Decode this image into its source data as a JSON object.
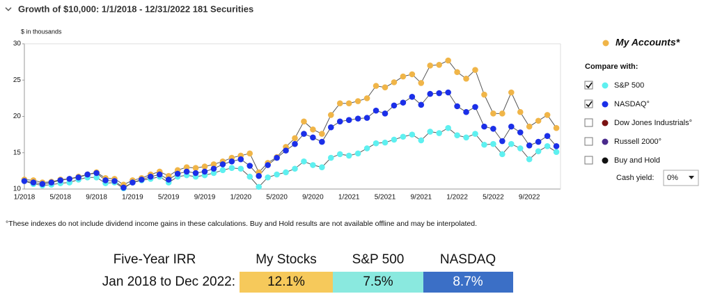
{
  "header": {
    "title": "Growth of $10,000:  1/1/2018 - 12/31/2022  181 Securities"
  },
  "chart_data": {
    "type": "line",
    "ylabel": "$ in thousands",
    "categories": [
      "1/2018",
      null,
      null,
      null,
      "5/2018",
      null,
      null,
      null,
      "9/2018",
      null,
      null,
      null,
      "1/2019",
      null,
      null,
      null,
      "5/2019",
      null,
      null,
      null,
      "9/2019",
      null,
      null,
      null,
      "1/2020",
      null,
      null,
      null,
      "5/2020",
      null,
      null,
      null,
      "9/2020",
      null,
      null,
      null,
      "1/2021",
      null,
      null,
      null,
      "5/2021",
      null,
      null,
      null,
      "9/2021",
      null,
      null,
      null,
      "1/2022",
      null,
      null,
      null,
      "5/2022",
      null,
      null,
      null,
      "9/2022",
      null,
      null,
      null
    ],
    "series": [
      {
        "name": "My Accounts*",
        "color": "#f0b548",
        "values": [
          11.3,
          11.2,
          10.9,
          11.0,
          11.3,
          11.4,
          11.7,
          12.0,
          12.3,
          11.5,
          11.4,
          10.6,
          11.2,
          11.5,
          12.0,
          12.4,
          11.8,
          12.6,
          13.0,
          12.9,
          13.1,
          13.4,
          13.8,
          14.3,
          14.6,
          14.9,
          12.3,
          13.6,
          14.4,
          15.8,
          17.0,
          19.3,
          18.2,
          17.6,
          20.2,
          21.8,
          21.8,
          22.1,
          22.5,
          24.2,
          24.0,
          24.7,
          25.5,
          25.8,
          24.6,
          27.0,
          27.1,
          27.7,
          26.1,
          25.2,
          26.4,
          23.0,
          20.4,
          20.4,
          23.3,
          20.6,
          18.6,
          19.4,
          20.2,
          18.4
        ]
      },
      {
        "name": "S&P 500",
        "color": "#5ef0f0",
        "values": [
          11.1,
          10.7,
          10.5,
          10.6,
          10.8,
          10.9,
          11.3,
          11.6,
          11.6,
          10.8,
          10.9,
          10.1,
          10.9,
          11.2,
          11.4,
          11.7,
          10.9,
          11.7,
          11.9,
          11.7,
          11.9,
          12.2,
          12.6,
          12.9,
          12.8,
          11.7,
          10.3,
          11.6,
          12.0,
          12.3,
          12.8,
          13.8,
          13.3,
          13.0,
          14.3,
          14.8,
          14.6,
          14.9,
          15.6,
          16.3,
          16.4,
          16.8,
          17.2,
          17.5,
          16.7,
          17.9,
          17.7,
          18.4,
          17.4,
          17.1,
          17.6,
          16.1,
          16.2,
          14.8,
          16.2,
          15.6,
          14.1,
          15.2,
          15.9,
          15.1
        ]
      },
      {
        "name": "NASDAQ°",
        "color": "#1b2fe8",
        "values": [
          11.1,
          10.9,
          10.7,
          10.9,
          11.2,
          11.4,
          11.6,
          12.0,
          12.2,
          11.2,
          11.1,
          10.2,
          10.9,
          11.3,
          11.7,
          12.0,
          11.3,
          12.1,
          12.4,
          12.2,
          12.4,
          12.8,
          13.4,
          13.8,
          14.1,
          13.2,
          11.8,
          13.3,
          14.3,
          15.3,
          16.2,
          17.6,
          17.1,
          16.5,
          18.5,
          19.3,
          19.5,
          19.7,
          19.8,
          20.8,
          20.4,
          21.5,
          21.9,
          22.7,
          21.6,
          23.1,
          23.2,
          23.3,
          21.4,
          20.6,
          21.3,
          18.6,
          18.3,
          16.6,
          18.6,
          17.8,
          16.0,
          16.5,
          17.3,
          15.9
        ]
      }
    ],
    "ylim": [
      10,
      30
    ],
    "yticks": [
      10,
      15,
      20,
      25,
      30
    ],
    "grid": false
  },
  "legend": {
    "compare_label": "Compare with:",
    "options": [
      {
        "name": "S&P 500",
        "color": "#5ef0f0",
        "checked": true
      },
      {
        "name": "NASDAQ°",
        "color": "#1b2fe8",
        "checked": true
      },
      {
        "name": "Dow Jones Industrials°",
        "color": "#7a1212",
        "checked": false
      },
      {
        "name": "Russell 2000°",
        "color": "#4a2a8c",
        "checked": false
      },
      {
        "name": "Buy and Hold",
        "color": "#111111",
        "checked": false
      }
    ],
    "cash_label": "Cash yield:",
    "cash_value": "0%"
  },
  "footnote": "°These indexes do not include dividend income gains in these calculations. Buy and Hold results are not available offline and may be interpolated.",
  "table": {
    "header": [
      "Five-Year IRR",
      "My Stocks",
      "S&P 500",
      "NASDAQ"
    ],
    "rows": [
      [
        "Jan 2018 to Dec 2022:",
        "12.1%",
        "7.5%",
        "8.7%"
      ]
    ],
    "colors": [
      "#f6c95b",
      "#8ae9df",
      "#3b6fc6"
    ]
  }
}
